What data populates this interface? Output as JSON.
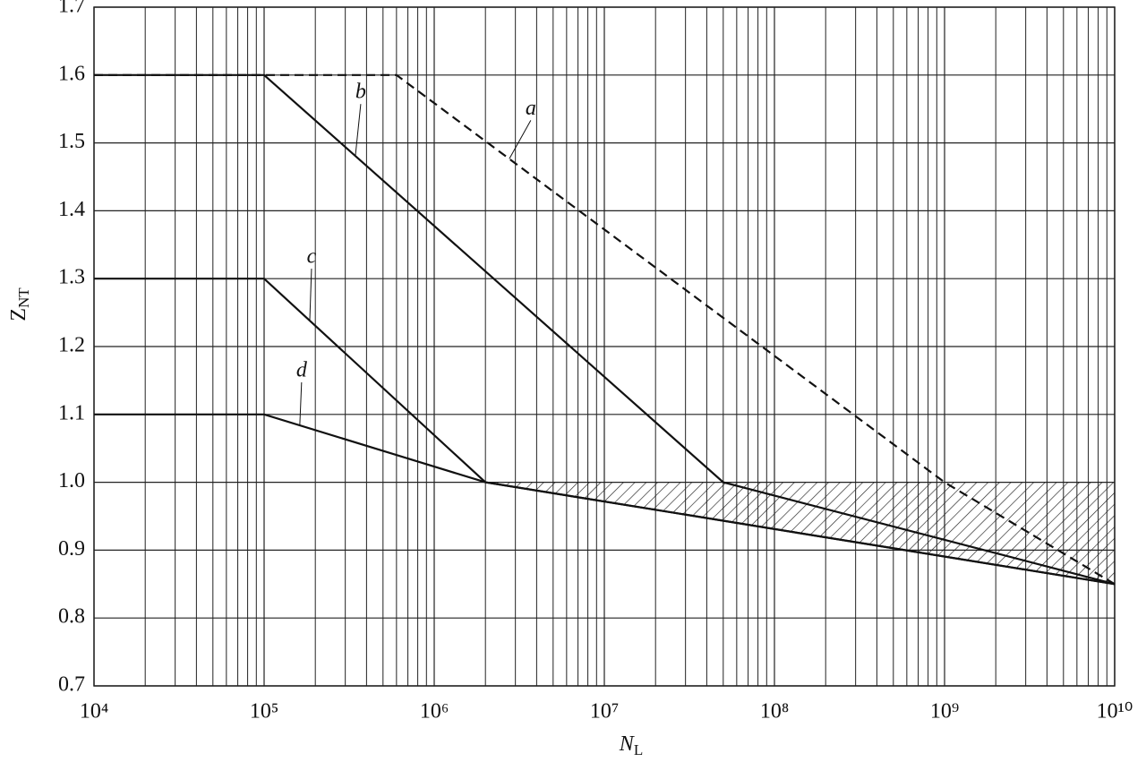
{
  "chart_data": {
    "type": "line",
    "xlabel": [
      "N",
      "L"
    ],
    "ylabel": [
      "Z",
      "NT"
    ],
    "xscale": "log",
    "grid": true,
    "xlim": [
      10000,
      10000000000
    ],
    "ylim": [
      0.7,
      1.7
    ],
    "xticks": [
      {
        "value": 10000,
        "label": "10⁴"
      },
      {
        "value": 100000,
        "label": "10⁵"
      },
      {
        "value": 1000000,
        "label": "10⁶"
      },
      {
        "value": 10000000,
        "label": "10⁷"
      },
      {
        "value": 100000000,
        "label": "10⁸"
      },
      {
        "value": 1000000000,
        "label": "10⁹"
      },
      {
        "value": 10000000000,
        "label": "10¹⁰"
      }
    ],
    "yticks": [
      0.7,
      0.8,
      0.9,
      1.0,
      1.1,
      1.2,
      1.3,
      1.4,
      1.5,
      1.6,
      1.7
    ],
    "series": [
      {
        "name": "a",
        "color": "#111111",
        "dashed": true,
        "x": [
          10000,
          600000,
          1000000000,
          10000000000
        ],
        "values": [
          1.6,
          1.6,
          1.0,
          0.85
        ]
      },
      {
        "name": "b",
        "color": "#111111",
        "dashed": false,
        "x": [
          10000,
          100000,
          50000000,
          10000000000
        ],
        "values": [
          1.6,
          1.6,
          1.0,
          0.85
        ]
      },
      {
        "name": "c",
        "color": "#111111",
        "dashed": false,
        "x": [
          10000,
          100000,
          2000000,
          10000000000
        ],
        "values": [
          1.3,
          1.3,
          1.0,
          0.85
        ]
      },
      {
        "name": "d",
        "color": "#111111",
        "dashed": false,
        "x": [
          10000,
          100000,
          2000000,
          10000000000
        ],
        "values": [
          1.1,
          1.1,
          1.0,
          0.85
        ]
      }
    ]
  }
}
